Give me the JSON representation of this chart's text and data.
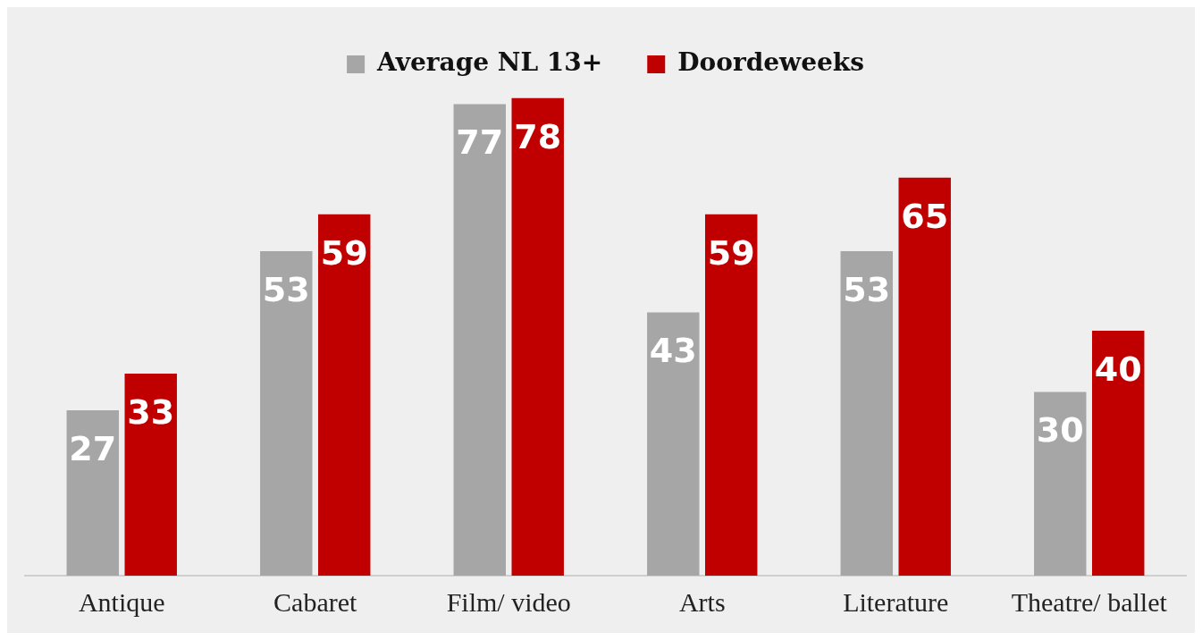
{
  "chart_data": {
    "type": "bar",
    "categories": [
      "Antique",
      "Cabaret",
      "Film/ video",
      "Arts",
      "Literature",
      "Theatre/ ballet"
    ],
    "series": [
      {
        "name": "Average NL 13+",
        "color": "#a6a6a6",
        "values": [
          27,
          53,
          77,
          43,
          53,
          30
        ]
      },
      {
        "name": "Doordeweeks",
        "color": "#c00000",
        "values": [
          33,
          59,
          78,
          59,
          65,
          40
        ]
      }
    ],
    "data_labels": true,
    "legend": "top",
    "grid": false
  }
}
